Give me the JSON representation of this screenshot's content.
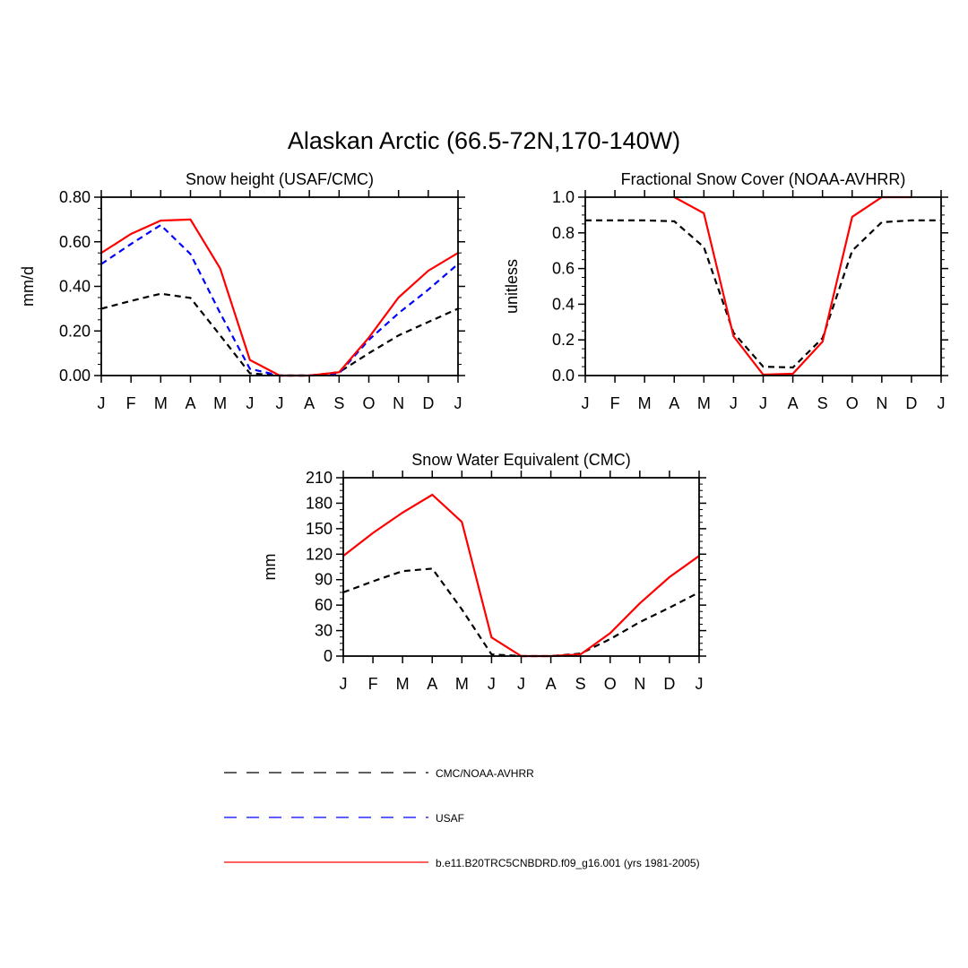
{
  "figure": {
    "title": "Alaskan Arctic (66.5-72N,170-140W)"
  },
  "months": [
    "J",
    "F",
    "M",
    "A",
    "M",
    "J",
    "J",
    "A",
    "S",
    "O",
    "N",
    "D",
    "J"
  ],
  "styles": {
    "CMC/NOAA-AVHRR": {
      "color": "#000000",
      "dash": "7,5"
    },
    "USAF": {
      "color": "#0000ff",
      "dash": "7,5"
    },
    "b.e11.B20TRC5CNBDRD.f09_g16.001 (yrs 1981-2005)": {
      "color": "#ff0000",
      "dash": ""
    }
  },
  "chart_data": [
    {
      "type": "line",
      "title": "Snow height (USAF/CMC)",
      "xlabel": "",
      "ylabel": "mm/d",
      "ylim": [
        0,
        0.8
      ],
      "yticks": [
        "0.00",
        "0.20",
        "0.40",
        "0.60",
        "0.80"
      ],
      "categories": [
        "J",
        "F",
        "M",
        "A",
        "M",
        "J",
        "J",
        "A",
        "S",
        "O",
        "N",
        "D",
        "J"
      ],
      "series": [
        {
          "name": "CMC/NOAA-AVHRR",
          "values": [
            0.3,
            0.335,
            0.367,
            0.348,
            0.18,
            0.01,
            0.0,
            0.0,
            0.015,
            0.1,
            0.18,
            0.24,
            0.3
          ]
        },
        {
          "name": "USAF",
          "values": [
            0.5,
            0.59,
            0.675,
            0.545,
            0.28,
            0.03,
            0.0,
            0.0,
            0.01,
            0.16,
            0.28,
            0.385,
            0.5
          ]
        },
        {
          "name": "b.e11.B20TRC5CNBDRD.f09_g16.001 (yrs 1981-2005)",
          "values": [
            0.55,
            0.635,
            0.695,
            0.7,
            0.48,
            0.07,
            0.0,
            0.0,
            0.015,
            0.17,
            0.35,
            0.47,
            0.55
          ]
        }
      ]
    },
    {
      "type": "line",
      "title": "Fractional Snow Cover (NOAA-AVHRR)",
      "xlabel": "",
      "ylabel": "unitless",
      "ylim": [
        0,
        1
      ],
      "yticks": [
        "0.0",
        "0.2",
        "0.4",
        "0.6",
        "0.8",
        "1.0"
      ],
      "categories": [
        "J",
        "F",
        "M",
        "A",
        "M",
        "J",
        "J",
        "A",
        "S",
        "O",
        "N",
        "D",
        "J"
      ],
      "series": [
        {
          "name": "CMC/NOAA-AVHRR",
          "values": [
            0.87,
            0.87,
            0.87,
            0.865,
            0.72,
            0.24,
            0.05,
            0.045,
            0.21,
            0.7,
            0.86,
            0.87,
            0.87
          ]
        },
        {
          "name": "b.e11.B20TRC5CNBDRD.f09_g16.001 (yrs 1981-2005)",
          "values": [
            null,
            null,
            null,
            1.0,
            0.91,
            0.22,
            0.005,
            0.01,
            0.19,
            0.89,
            1.0,
            1.0,
            null
          ]
        }
      ]
    },
    {
      "type": "line",
      "title": "Snow Water Equivalent (CMC)",
      "xlabel": "",
      "ylabel": "mm",
      "ylim": [
        0,
        210
      ],
      "yticks": [
        "0",
        "30",
        "60",
        "90",
        "120",
        "150",
        "180",
        "210"
      ],
      "categories": [
        "J",
        "F",
        "M",
        "A",
        "M",
        "J",
        "J",
        "A",
        "S",
        "O",
        "N",
        "D",
        "J"
      ],
      "series": [
        {
          "name": "CMC/NOAA-AVHRR",
          "values": [
            75,
            88,
            100,
            103,
            55,
            2,
            0,
            0,
            3,
            20,
            40,
            57,
            75
          ]
        },
        {
          "name": "b.e11.B20TRC5CNBDRD.f09_g16.001 (yrs 1981-2005)",
          "values": [
            118,
            145,
            169,
            190,
            158,
            22,
            0,
            0,
            2,
            27,
            62,
            93,
            118
          ]
        }
      ]
    }
  ],
  "legend": {
    "placement": "bottom-center",
    "entries": [
      {
        "label": "CMC/NOAA-AVHRR",
        "color": "#000000",
        "style": "dashed"
      },
      {
        "label": "USAF",
        "color": "#0000ff",
        "style": "dashed"
      },
      {
        "label": "b.e11.B20TRC5CNBDRD.f09_g16.001 (yrs 1981-2005)",
        "color": "#ff0000",
        "style": "solid"
      }
    ]
  }
}
